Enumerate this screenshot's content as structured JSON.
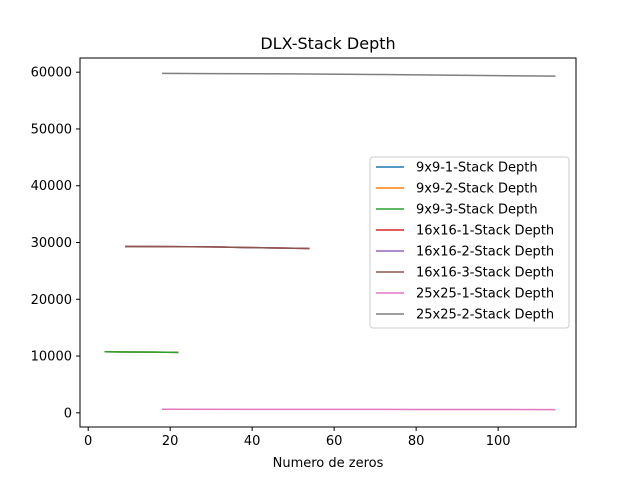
{
  "chart_data": {
    "type": "line",
    "title": "DLX-Stack Depth",
    "xlabel": "Numero de zeros",
    "ylabel": "",
    "xlim": [
      -2,
      119
    ],
    "ylim": [
      -2500,
      62500
    ],
    "xticks": [
      0,
      20,
      40,
      60,
      80,
      100
    ],
    "yticks": [
      0,
      10000,
      20000,
      30000,
      40000,
      50000,
      60000
    ],
    "grid": false,
    "legend_position": "center-right",
    "series": [
      {
        "name": "9x9-1-Stack Depth",
        "color": "#1f77b4",
        "x": [
          4,
          10,
          16,
          22
        ],
        "y": [
          10750,
          10720,
          10680,
          10650
        ]
      },
      {
        "name": "9x9-2-Stack Depth",
        "color": "#ff7f0e",
        "x": [
          4,
          10,
          16,
          22
        ],
        "y": [
          10750,
          10720,
          10680,
          10650
        ]
      },
      {
        "name": "9x9-3-Stack Depth",
        "color": "#2ca02c",
        "x": [
          4,
          10,
          16,
          22
        ],
        "y": [
          10750,
          10720,
          10680,
          10650
        ]
      },
      {
        "name": "16x16-1-Stack Depth",
        "color": "#d62728",
        "x": [
          9,
          20,
          30,
          40,
          54
        ],
        "y": [
          29300,
          29270,
          29220,
          29100,
          28950
        ]
      },
      {
        "name": "16x16-2-Stack Depth",
        "color": "#9467bd",
        "x": [
          9,
          20,
          30,
          40,
          54
        ],
        "y": [
          29300,
          29270,
          29220,
          29100,
          28950
        ]
      },
      {
        "name": "16x16-3-Stack Depth",
        "color": "#8c564b",
        "x": [
          9,
          20,
          30,
          40,
          54
        ],
        "y": [
          29300,
          29270,
          29220,
          29100,
          28950
        ]
      },
      {
        "name": "25x25-1-Stack Depth",
        "color": "#e377c2",
        "x": [
          18,
          40,
          60,
          80,
          100,
          114
        ],
        "y": [
          620,
          610,
          600,
          590,
          580,
          570
        ]
      },
      {
        "name": "25x25-2-Stack Depth",
        "color": "#7f7f7f",
        "x": [
          18,
          30,
          50,
          70,
          90,
          114
        ],
        "y": [
          59800,
          59750,
          59700,
          59600,
          59450,
          59300
        ]
      }
    ]
  }
}
